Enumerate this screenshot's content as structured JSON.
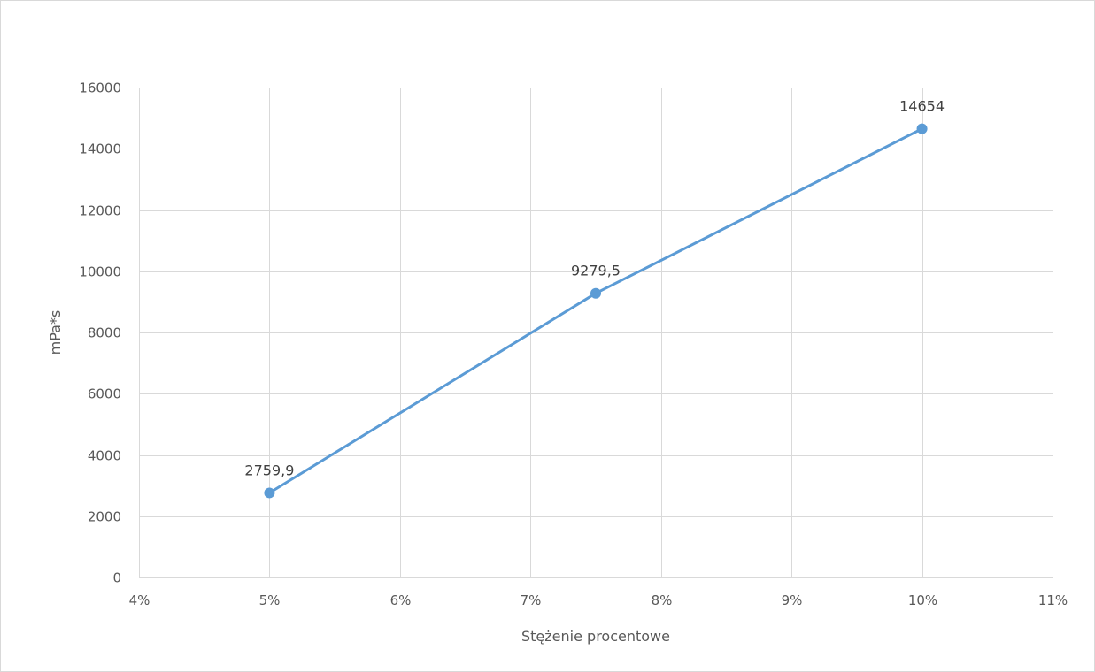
{
  "chart_data": {
    "type": "line",
    "title": "",
    "xlabel": "Stężenie procentowe",
    "ylabel": "mPa*s",
    "xlim": [
      0.04,
      0.11
    ],
    "ylim": [
      0,
      16000
    ],
    "x_tick_values": [
      0.04,
      0.05,
      0.06,
      0.07,
      0.08,
      0.09,
      0.1,
      0.11
    ],
    "x_tick_labels": [
      "4%",
      "5%",
      "6%",
      "7%",
      "8%",
      "9%",
      "10%",
      "11%"
    ],
    "y_tick_values": [
      0,
      2000,
      4000,
      6000,
      8000,
      10000,
      12000,
      14000,
      16000
    ],
    "y_tick_labels": [
      "0",
      "2000",
      "4000",
      "6000",
      "8000",
      "10000",
      "12000",
      "14000",
      "16000"
    ],
    "grid": true,
    "legend": "none",
    "series": [
      {
        "x": [
          0.05,
          0.075,
          0.1
        ],
        "y": [
          2759.9,
          9279.5,
          14654
        ],
        "labels": [
          "2759,9",
          "9279,5",
          "14654"
        ],
        "color": "#5B9BD5"
      }
    ]
  }
}
